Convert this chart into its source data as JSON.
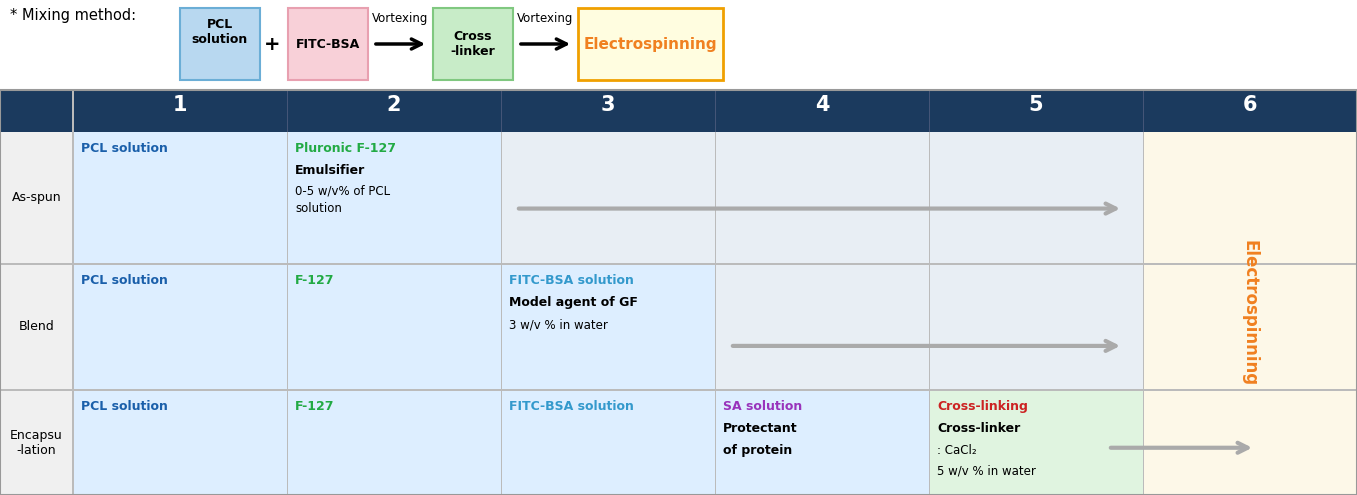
{
  "fig_width": 13.57,
  "fig_height": 4.95,
  "bg_color": "#ffffff",
  "navy": "#1b3a5e",
  "light_blue_row": "#ddeeff",
  "light_yellow_col6": "#fdf8e8",
  "light_green_cross": "#e8f8e8",
  "electrospinning_color": "#f08020",
  "pcl_color": "#1a5faa",
  "pluronic_color": "#22aa44",
  "fitc_color": "#3399cc",
  "sa_color": "#9933bb",
  "crosslink_color": "#cc2222",
  "black": "#000000",
  "gray_arrow": "#aaaaaa",
  "divider": "#bbbbbb",
  "header_text": "#ffffff",
  "row_label_bg": "#f0f0f0",
  "banner_bg": "#ffffff",
  "col_labels": [
    "1",
    "2",
    "3",
    "4",
    "5",
    "6"
  ],
  "row_labels": [
    "As-spun",
    "Blend",
    "Encapsu\n-lation"
  ]
}
